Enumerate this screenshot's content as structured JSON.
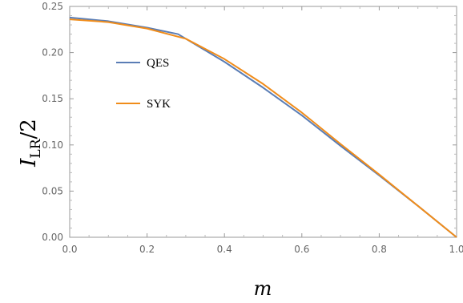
{
  "chart_data": {
    "type": "line",
    "title": "",
    "xlabel": "m",
    "ylabel": "I_LR/2",
    "xlim": [
      0,
      1
    ],
    "ylim": [
      0,
      0.25
    ],
    "x_ticks": [
      "0.0",
      "0.2",
      "0.4",
      "0.6",
      "0.8",
      "1.0"
    ],
    "y_ticks": [
      "0.00",
      "0.05",
      "0.10",
      "0.15",
      "0.20",
      "0.25"
    ],
    "grid": false,
    "legend_position": "upper-left-inside",
    "series": [
      {
        "name": "QES",
        "color": "#5a7db5",
        "x": [
          0.0,
          0.1,
          0.2,
          0.28,
          0.4,
          0.5,
          0.6,
          0.7,
          0.8,
          0.9,
          1.0
        ],
        "y": [
          0.238,
          0.234,
          0.227,
          0.22,
          0.19,
          0.162,
          0.132,
          0.099,
          0.067,
          0.034,
          0.0
        ]
      },
      {
        "name": "SYK",
        "color": "#f08c1a",
        "x": [
          0.0,
          0.1,
          0.2,
          0.3,
          0.4,
          0.5,
          0.6,
          0.7,
          0.8,
          0.9,
          1.0
        ],
        "y": [
          0.236,
          0.233,
          0.226,
          0.215,
          0.193,
          0.166,
          0.135,
          0.101,
          0.068,
          0.034,
          0.0
        ]
      }
    ]
  }
}
